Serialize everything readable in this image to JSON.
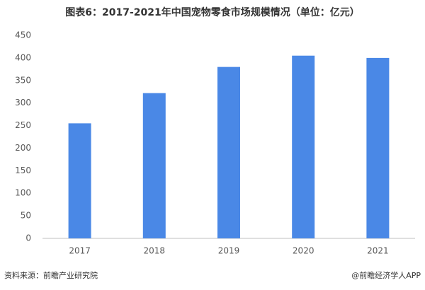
{
  "chart_data": {
    "type": "bar",
    "title": "图表6：2017-2021年中国宠物零食市场规模情况（单位：亿元）",
    "categories": [
      "2017",
      "2018",
      "2019",
      "2020",
      "2021"
    ],
    "values": [
      255,
      322,
      380,
      405,
      400
    ],
    "color": "#4a88e6",
    "ylim": [
      0,
      450
    ],
    "yticks": [
      0,
      50,
      100,
      150,
      200,
      250,
      300,
      350,
      400,
      450
    ],
    "grid": false,
    "source": "资料来源：前瞻产业研究院",
    "credit": "@前瞻经济学人APP"
  }
}
